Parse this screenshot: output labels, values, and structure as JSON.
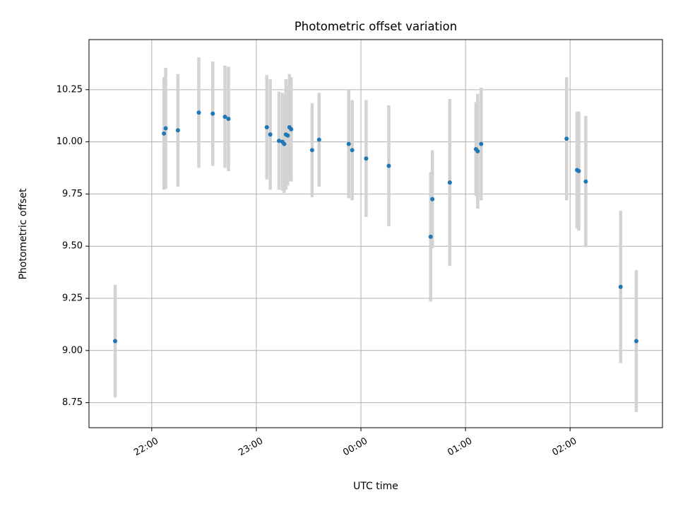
{
  "chart_data": {
    "type": "scatter",
    "title": "Photometric offset variation",
    "xlabel": "UTC time",
    "ylabel": "Photometric offset",
    "x_axis_kind": "time",
    "xlim": [
      "21:24",
      "02:53"
    ],
    "ylim": [
      8.63,
      10.49
    ],
    "grid": true,
    "x_ticks": [
      "22:00",
      "23:00",
      "00:00",
      "01:00",
      "02:00"
    ],
    "y_ticks": [
      "8.75",
      "9.00",
      "9.25",
      "9.50",
      "9.75",
      "10.00",
      "10.25"
    ],
    "colors": {
      "marker": "#1f77b4",
      "errorbar": "#d3d3d3",
      "grid": "#b0b0b0"
    },
    "points": [
      {
        "x": "21:39",
        "y": 9.045,
        "yerr": 0.27
      },
      {
        "x": "22:07",
        "y": 10.04,
        "yerr": 0.27
      },
      {
        "x": "22:08",
        "y": 10.065,
        "yerr": 0.29
      },
      {
        "x": "22:15",
        "y": 10.055,
        "yerr": 0.27
      },
      {
        "x": "22:27",
        "y": 10.14,
        "yerr": 0.265
      },
      {
        "x": "22:35",
        "y": 10.135,
        "yerr": 0.25
      },
      {
        "x": "22:42",
        "y": 10.12,
        "yerr": 0.245
      },
      {
        "x": "22:44",
        "y": 10.11,
        "yerr": 0.25
      },
      {
        "x": "23:06",
        "y": 10.07,
        "yerr": 0.25
      },
      {
        "x": "23:08",
        "y": 10.035,
        "yerr": 0.265
      },
      {
        "x": "23:13",
        "y": 10.005,
        "yerr": 0.235
      },
      {
        "x": "23:15",
        "y": 10.0,
        "yerr": 0.235
      },
      {
        "x": "23:16",
        "y": 9.99,
        "yerr": 0.235
      },
      {
        "x": "23:17",
        "y": 10.035,
        "yerr": 0.265
      },
      {
        "x": "23:18",
        "y": 10.03,
        "yerr": 0.24
      },
      {
        "x": "23:19",
        "y": 10.07,
        "yerr": 0.255
      },
      {
        "x": "23:20",
        "y": 10.06,
        "yerr": 0.25
      },
      {
        "x": "23:32",
        "y": 9.96,
        "yerr": 0.225
      },
      {
        "x": "23:36",
        "y": 10.01,
        "yerr": 0.225
      },
      {
        "x": "23:53",
        "y": 9.99,
        "yerr": 0.26
      },
      {
        "x": "23:55",
        "y": 9.96,
        "yerr": 0.24
      },
      {
        "x": "00:03",
        "y": 9.92,
        "yerr": 0.28
      },
      {
        "x": "00:16",
        "y": 9.885,
        "yerr": 0.29
      },
      {
        "x": "00:40",
        "y": 9.545,
        "yerr": 0.31
      },
      {
        "x": "00:41",
        "y": 9.725,
        "yerr": 0.235
      },
      {
        "x": "00:51",
        "y": 9.805,
        "yerr": 0.4
      },
      {
        "x": "01:06",
        "y": 9.965,
        "yerr": 0.225
      },
      {
        "x": "01:07",
        "y": 9.955,
        "yerr": 0.275
      },
      {
        "x": "01:09",
        "y": 9.99,
        "yerr": 0.27
      },
      {
        "x": "01:58",
        "y": 10.015,
        "yerr": 0.295
      },
      {
        "x": "02:04",
        "y": 9.865,
        "yerr": 0.28
      },
      {
        "x": "02:05",
        "y": 9.86,
        "yerr": 0.285
      },
      {
        "x": "02:09",
        "y": 9.81,
        "yerr": 0.315
      },
      {
        "x": "02:29",
        "y": 9.305,
        "yerr": 0.365
      },
      {
        "x": "02:38",
        "y": 9.045,
        "yerr": 0.34
      }
    ]
  }
}
